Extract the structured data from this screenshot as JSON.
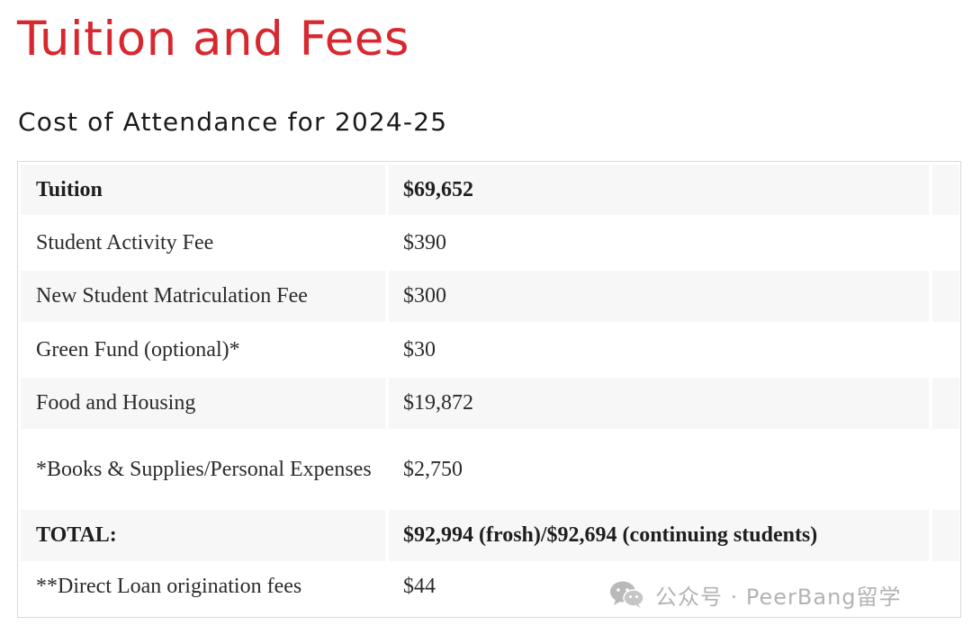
{
  "page": {
    "title": "Tuition and Fees",
    "section_title": "Cost of Attendance for 2024-25"
  },
  "table": {
    "rows": [
      {
        "label": "Tuition",
        "value": "$69,652"
      },
      {
        "label": "Student Activity Fee",
        "value": "$390"
      },
      {
        "label": "New Student Matriculation Fee",
        "value": "$300"
      },
      {
        "label": "Green Fund (optional)*",
        "value": "$30"
      },
      {
        "label": "Food and Housing",
        "value": "$19,872"
      },
      {
        "label": "*Books & Supplies/Personal Expenses",
        "value": "$2,750"
      },
      {
        "label": "TOTAL:",
        "value": "$92,994 (frosh)/$92,694 (continuing students)"
      },
      {
        "label": "**Direct Loan origination fees",
        "value": "$44"
      }
    ]
  },
  "watermark": {
    "icon": "wechat-icon",
    "text": "公众号 · PeerBang留学"
  },
  "colors": {
    "title": "#d7282f",
    "row_shade": "#f7f7f7",
    "border": "#d9d9d9"
  }
}
